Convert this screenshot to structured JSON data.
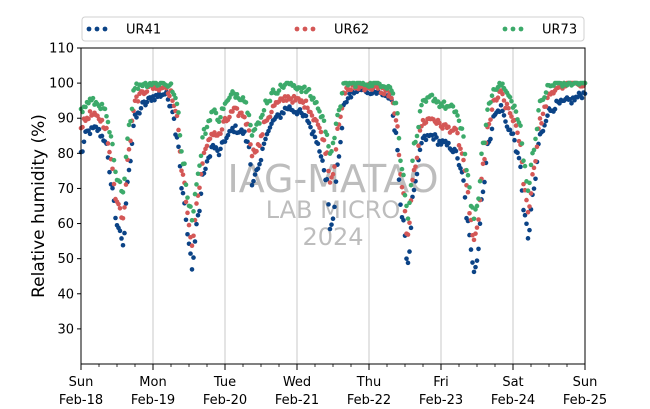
{
  "chart_data": {
    "type": "scatter",
    "ylabel": "Relative humidity (%)",
    "ylim": [
      20,
      110
    ],
    "yticks": [
      30,
      40,
      50,
      60,
      70,
      80,
      90,
      100,
      110
    ],
    "xlim": [
      "2024-02-18",
      "2024-02-25"
    ],
    "xticks": [
      {
        "x": "2024-02-18",
        "day": "Sun",
        "date": "Feb-18"
      },
      {
        "x": "2024-02-19",
        "day": "Mon",
        "date": "Feb-19"
      },
      {
        "x": "2024-02-20",
        "day": "Tue",
        "date": "Feb-20"
      },
      {
        "x": "2024-02-21",
        "day": "Wed",
        "date": "Feb-21"
      },
      {
        "x": "2024-02-22",
        "day": "Thu",
        "date": "Feb-22"
      },
      {
        "x": "2024-02-23",
        "day": "Fri",
        "date": "Feb-23"
      },
      {
        "x": "2024-02-24",
        "day": "Sat",
        "date": "Feb-24"
      },
      {
        "x": "2024-02-25",
        "day": "Sun",
        "date": "Feb-25"
      }
    ],
    "grid": "vertical at day boundaries",
    "legend": "top, horizontal",
    "watermark": [
      "IAG-MATAO",
      "LAB MICRO",
      "2024"
    ],
    "series": [
      {
        "name": "UR41",
        "color": "#0b4386",
        "points": [
          [
            "2024-02-18 00:00",
            80
          ],
          [
            "2024-02-18 02:00",
            86
          ],
          [
            "2024-02-18 05:00",
            87
          ],
          [
            "2024-02-18 08:00",
            84
          ],
          [
            "2024-02-18 10:00",
            72
          ],
          [
            "2024-02-18 12:00",
            60
          ],
          [
            "2024-02-18 14:00",
            54
          ],
          [
            "2024-02-18 16:00",
            76
          ],
          [
            "2024-02-18 18:00",
            90
          ],
          [
            "2024-02-18 21:00",
            94
          ],
          [
            "2024-02-19 00:00",
            96
          ],
          [
            "2024-02-19 04:00",
            97
          ],
          [
            "2024-02-19 06:00",
            94
          ],
          [
            "2024-02-19 08:00",
            85
          ],
          [
            "2024-02-19 10:00",
            68
          ],
          [
            "2024-02-19 12:00",
            54
          ],
          [
            "2024-02-19 13:00",
            48
          ],
          [
            "2024-02-19 15:00",
            62
          ],
          [
            "2024-02-19 17:00",
            75
          ],
          [
            "2024-02-19 20:00",
            82
          ],
          [
            "2024-02-19 22:00",
            80
          ],
          [
            "2024-02-20 00:00",
            84
          ],
          [
            "2024-02-20 03:00",
            87
          ],
          [
            "2024-02-20 06:00",
            86
          ],
          [
            "2024-02-20 08:00",
            82
          ],
          [
            "2024-02-20 09:00",
            72
          ],
          [
            "2024-02-20 11:00",
            75
          ],
          [
            "2024-02-20 14:00",
            86
          ],
          [
            "2024-02-20 17:00",
            90
          ],
          [
            "2024-02-20 21:00",
            93
          ],
          [
            "2024-02-21 00:00",
            92
          ],
          [
            "2024-02-21 03:00",
            90
          ],
          [
            "2024-02-21 06:00",
            85
          ],
          [
            "2024-02-21 08:00",
            80
          ],
          [
            "2024-02-21 10:00",
            72
          ],
          [
            "2024-02-21 11:00",
            58
          ],
          [
            "2024-02-21 12:00",
            62
          ],
          [
            "2024-02-21 14:00",
            80
          ],
          [
            "2024-02-21 16:00",
            95
          ],
          [
            "2024-02-21 20:00",
            98
          ],
          [
            "2024-02-22 00:00",
            98
          ],
          [
            "2024-02-22 04:00",
            97
          ],
          [
            "2024-02-22 07:00",
            96
          ],
          [
            "2024-02-22 09:00",
            85
          ],
          [
            "2024-02-22 11:00",
            62
          ],
          [
            "2024-02-22 13:00",
            49
          ],
          [
            "2024-02-22 15:00",
            70
          ],
          [
            "2024-02-22 18:00",
            84
          ],
          [
            "2024-02-22 21:00",
            85
          ],
          [
            "2024-02-23 00:00",
            83
          ],
          [
            "2024-02-23 03:00",
            82
          ],
          [
            "2024-02-23 05:00",
            80
          ],
          [
            "2024-02-23 07:00",
            74
          ],
          [
            "2024-02-23 09:00",
            60
          ],
          [
            "2024-02-23 10:00",
            52
          ],
          [
            "2024-02-23 11:00",
            47
          ],
          [
            "2024-02-23 12:00",
            50
          ],
          [
            "2024-02-23 14:00",
            70
          ],
          [
            "2024-02-23 16:00",
            84
          ],
          [
            "2024-02-23 18:00",
            91
          ],
          [
            "2024-02-23 20:00",
            93
          ],
          [
            "2024-02-23 22:00",
            88
          ],
          [
            "2024-02-24 00:00",
            85
          ],
          [
            "2024-02-24 02:00",
            78
          ],
          [
            "2024-02-24 04:00",
            62
          ],
          [
            "2024-02-24 05:00",
            56
          ],
          [
            "2024-02-24 07:00",
            70
          ],
          [
            "2024-02-24 09:00",
            85
          ],
          [
            "2024-02-24 12:00",
            92
          ],
          [
            "2024-02-24 15:00",
            94
          ],
          [
            "2024-02-24 19:00",
            95
          ],
          [
            "2024-02-25 00:00",
            97
          ]
        ]
      },
      {
        "name": "UR62",
        "color": "#d45756",
        "points": [
          [
            "2024-02-18 00:00",
            88
          ],
          [
            "2024-02-18 03:00",
            91
          ],
          [
            "2024-02-18 06:00",
            90
          ],
          [
            "2024-02-18 08:00",
            88
          ],
          [
            "2024-02-18 10:00",
            78
          ],
          [
            "2024-02-18 12:00",
            66
          ],
          [
            "2024-02-18 14:00",
            62
          ],
          [
            "2024-02-18 16:00",
            82
          ],
          [
            "2024-02-18 18:00",
            95
          ],
          [
            "2024-02-18 21:00",
            98
          ],
          [
            "2024-02-19 00:00",
            99
          ],
          [
            "2024-02-19 04:00",
            99
          ],
          [
            "2024-02-19 06:00",
            97
          ],
          [
            "2024-02-19 08:00",
            90
          ],
          [
            "2024-02-19 10:00",
            73
          ],
          [
            "2024-02-19 12:00",
            60
          ],
          [
            "2024-02-19 13:00",
            54
          ],
          [
            "2024-02-19 15:00",
            68
          ],
          [
            "2024-02-19 17:00",
            80
          ],
          [
            "2024-02-19 20:00",
            86
          ],
          [
            "2024-02-19 22:00",
            85
          ],
          [
            "2024-02-20 00:00",
            89
          ],
          [
            "2024-02-20 03:00",
            92
          ],
          [
            "2024-02-20 06:00",
            91
          ],
          [
            "2024-02-20 08:00",
            87
          ],
          [
            "2024-02-20 09:00",
            80
          ],
          [
            "2024-02-20 11:00",
            82
          ],
          [
            "2024-02-20 14:00",
            90
          ],
          [
            "2024-02-20 17:00",
            94
          ],
          [
            "2024-02-20 21:00",
            96
          ],
          [
            "2024-02-21 00:00",
            95
          ],
          [
            "2024-02-21 03:00",
            94
          ],
          [
            "2024-02-21 06:00",
            90
          ],
          [
            "2024-02-21 08:00",
            86
          ],
          [
            "2024-02-21 10:00",
            80
          ],
          [
            "2024-02-21 11:00",
            72
          ],
          [
            "2024-02-21 12:00",
            75
          ],
          [
            "2024-02-21 14:00",
            88
          ],
          [
            "2024-02-21 16:00",
            98
          ],
          [
            "2024-02-21 20:00",
            99
          ],
          [
            "2024-02-22 00:00",
            99
          ],
          [
            "2024-02-22 04:00",
            98
          ],
          [
            "2024-02-22 07:00",
            97
          ],
          [
            "2024-02-22 09:00",
            90
          ],
          [
            "2024-02-22 11:00",
            70
          ],
          [
            "2024-02-22 13:00",
            56
          ],
          [
            "2024-02-22 15:00",
            76
          ],
          [
            "2024-02-22 18:00",
            89
          ],
          [
            "2024-02-22 21:00",
            90
          ],
          [
            "2024-02-23 00:00",
            88
          ],
          [
            "2024-02-23 03:00",
            87
          ],
          [
            "2024-02-23 05:00",
            86
          ],
          [
            "2024-02-23 07:00",
            80
          ],
          [
            "2024-02-23 09:00",
            68
          ],
          [
            "2024-02-23 10:00",
            60
          ],
          [
            "2024-02-23 11:00",
            55
          ],
          [
            "2024-02-23 12:00",
            58
          ],
          [
            "2024-02-23 14:00",
            76
          ],
          [
            "2024-02-23 16:00",
            89
          ],
          [
            "2024-02-23 18:00",
            95
          ],
          [
            "2024-02-23 20:00",
            97
          ],
          [
            "2024-02-23 22:00",
            93
          ],
          [
            "2024-02-24 00:00",
            90
          ],
          [
            "2024-02-24 02:00",
            84
          ],
          [
            "2024-02-24 04:00",
            70
          ],
          [
            "2024-02-24 05:00",
            63
          ],
          [
            "2024-02-24 07:00",
            76
          ],
          [
            "2024-02-24 09:00",
            89
          ],
          [
            "2024-02-24 12:00",
            96
          ],
          [
            "2024-02-24 15:00",
            99
          ],
          [
            "2024-02-24 19:00",
            100
          ],
          [
            "2024-02-25 00:00",
            100
          ]
        ]
      },
      {
        "name": "UR73",
        "color": "#3caa6a",
        "points": [
          [
            "2024-02-18 00:00",
            92
          ],
          [
            "2024-02-18 03:00",
            95
          ],
          [
            "2024-02-18 06:00",
            94
          ],
          [
            "2024-02-18 08:00",
            92
          ],
          [
            "2024-02-18 10:00",
            84
          ],
          [
            "2024-02-18 12:00",
            72
          ],
          [
            "2024-02-18 14:00",
            70
          ],
          [
            "2024-02-18 16:00",
            88
          ],
          [
            "2024-02-18 18:00",
            99
          ],
          [
            "2024-02-18 21:00",
            100
          ],
          [
            "2024-02-19 00:00",
            100
          ],
          [
            "2024-02-19 04:00",
            100
          ],
          [
            "2024-02-19 06:00",
            99
          ],
          [
            "2024-02-19 08:00",
            94
          ],
          [
            "2024-02-19 10:00",
            78
          ],
          [
            "2024-02-19 12:00",
            66
          ],
          [
            "2024-02-19 13:00",
            62
          ],
          [
            "2024-02-19 15:00",
            74
          ],
          [
            "2024-02-19 17:00",
            86
          ],
          [
            "2024-02-19 20:00",
            92
          ],
          [
            "2024-02-19 22:00",
            90
          ],
          [
            "2024-02-20 00:00",
            94
          ],
          [
            "2024-02-20 03:00",
            97
          ],
          [
            "2024-02-20 06:00",
            96
          ],
          [
            "2024-02-20 08:00",
            92
          ],
          [
            "2024-02-20 09:00",
            86
          ],
          [
            "2024-02-20 11:00",
            88
          ],
          [
            "2024-02-20 14:00",
            95
          ],
          [
            "2024-02-20 17:00",
            98
          ],
          [
            "2024-02-20 21:00",
            100
          ],
          [
            "2024-02-21 00:00",
            99
          ],
          [
            "2024-02-21 03:00",
            98
          ],
          [
            "2024-02-21 06:00",
            95
          ],
          [
            "2024-02-21 08:00",
            91
          ],
          [
            "2024-02-21 10:00",
            86
          ],
          [
            "2024-02-21 11:00",
            80
          ],
          [
            "2024-02-21 12:00",
            82
          ],
          [
            "2024-02-21 14:00",
            93
          ],
          [
            "2024-02-21 16:00",
            100
          ],
          [
            "2024-02-21 20:00",
            100
          ],
          [
            "2024-02-22 00:00",
            100
          ],
          [
            "2024-02-22 04:00",
            100
          ],
          [
            "2024-02-22 07:00",
            99
          ],
          [
            "2024-02-22 09:00",
            94
          ],
          [
            "2024-02-22 11:00",
            76
          ],
          [
            "2024-02-22 13:00",
            62
          ],
          [
            "2024-02-22 15:00",
            82
          ],
          [
            "2024-02-22 18:00",
            94
          ],
          [
            "2024-02-22 21:00",
            96
          ],
          [
            "2024-02-23 00:00",
            94
          ],
          [
            "2024-02-23 03:00",
            93
          ],
          [
            "2024-02-23 05:00",
            92
          ],
          [
            "2024-02-23 07:00",
            86
          ],
          [
            "2024-02-23 09:00",
            74
          ],
          [
            "2024-02-23 10:00",
            66
          ],
          [
            "2024-02-23 11:00",
            62
          ],
          [
            "2024-02-23 12:00",
            64
          ],
          [
            "2024-02-23 14:00",
            82
          ],
          [
            "2024-02-23 16:00",
            94
          ],
          [
            "2024-02-23 18:00",
            99
          ],
          [
            "2024-02-23 20:00",
            100
          ],
          [
            "2024-02-23 22:00",
            97
          ],
          [
            "2024-02-24 00:00",
            94
          ],
          [
            "2024-02-24 02:00",
            89
          ],
          [
            "2024-02-24 04:00",
            76
          ],
          [
            "2024-02-24 05:00",
            70
          ],
          [
            "2024-02-24 07:00",
            82
          ],
          [
            "2024-02-24 09:00",
            94
          ],
          [
            "2024-02-24 12:00",
            99
          ],
          [
            "2024-02-24 15:00",
            100
          ],
          [
            "2024-02-24 19:00",
            100
          ],
          [
            "2024-02-25 00:00",
            100
          ]
        ]
      }
    ]
  }
}
